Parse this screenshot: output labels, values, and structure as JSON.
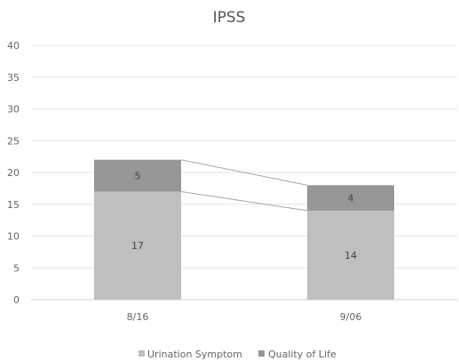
{
  "chart_data": {
    "type": "bar",
    "stacked": true,
    "title": "IPSS",
    "categories": [
      "8/16",
      "9/06"
    ],
    "series": [
      {
        "name": "Urination Symptom",
        "values": [
          17,
          14
        ],
        "color": "#bfbfbf"
      },
      {
        "name": "Quality of Life",
        "values": [
          5,
          4
        ],
        "color": "#969696"
      }
    ],
    "ylim": [
      0,
      40
    ],
    "yticks": [
      0,
      5,
      10,
      15,
      20,
      25,
      30,
      35,
      40
    ],
    "series_lines": true,
    "grid": true,
    "legend_position": "bottom"
  }
}
